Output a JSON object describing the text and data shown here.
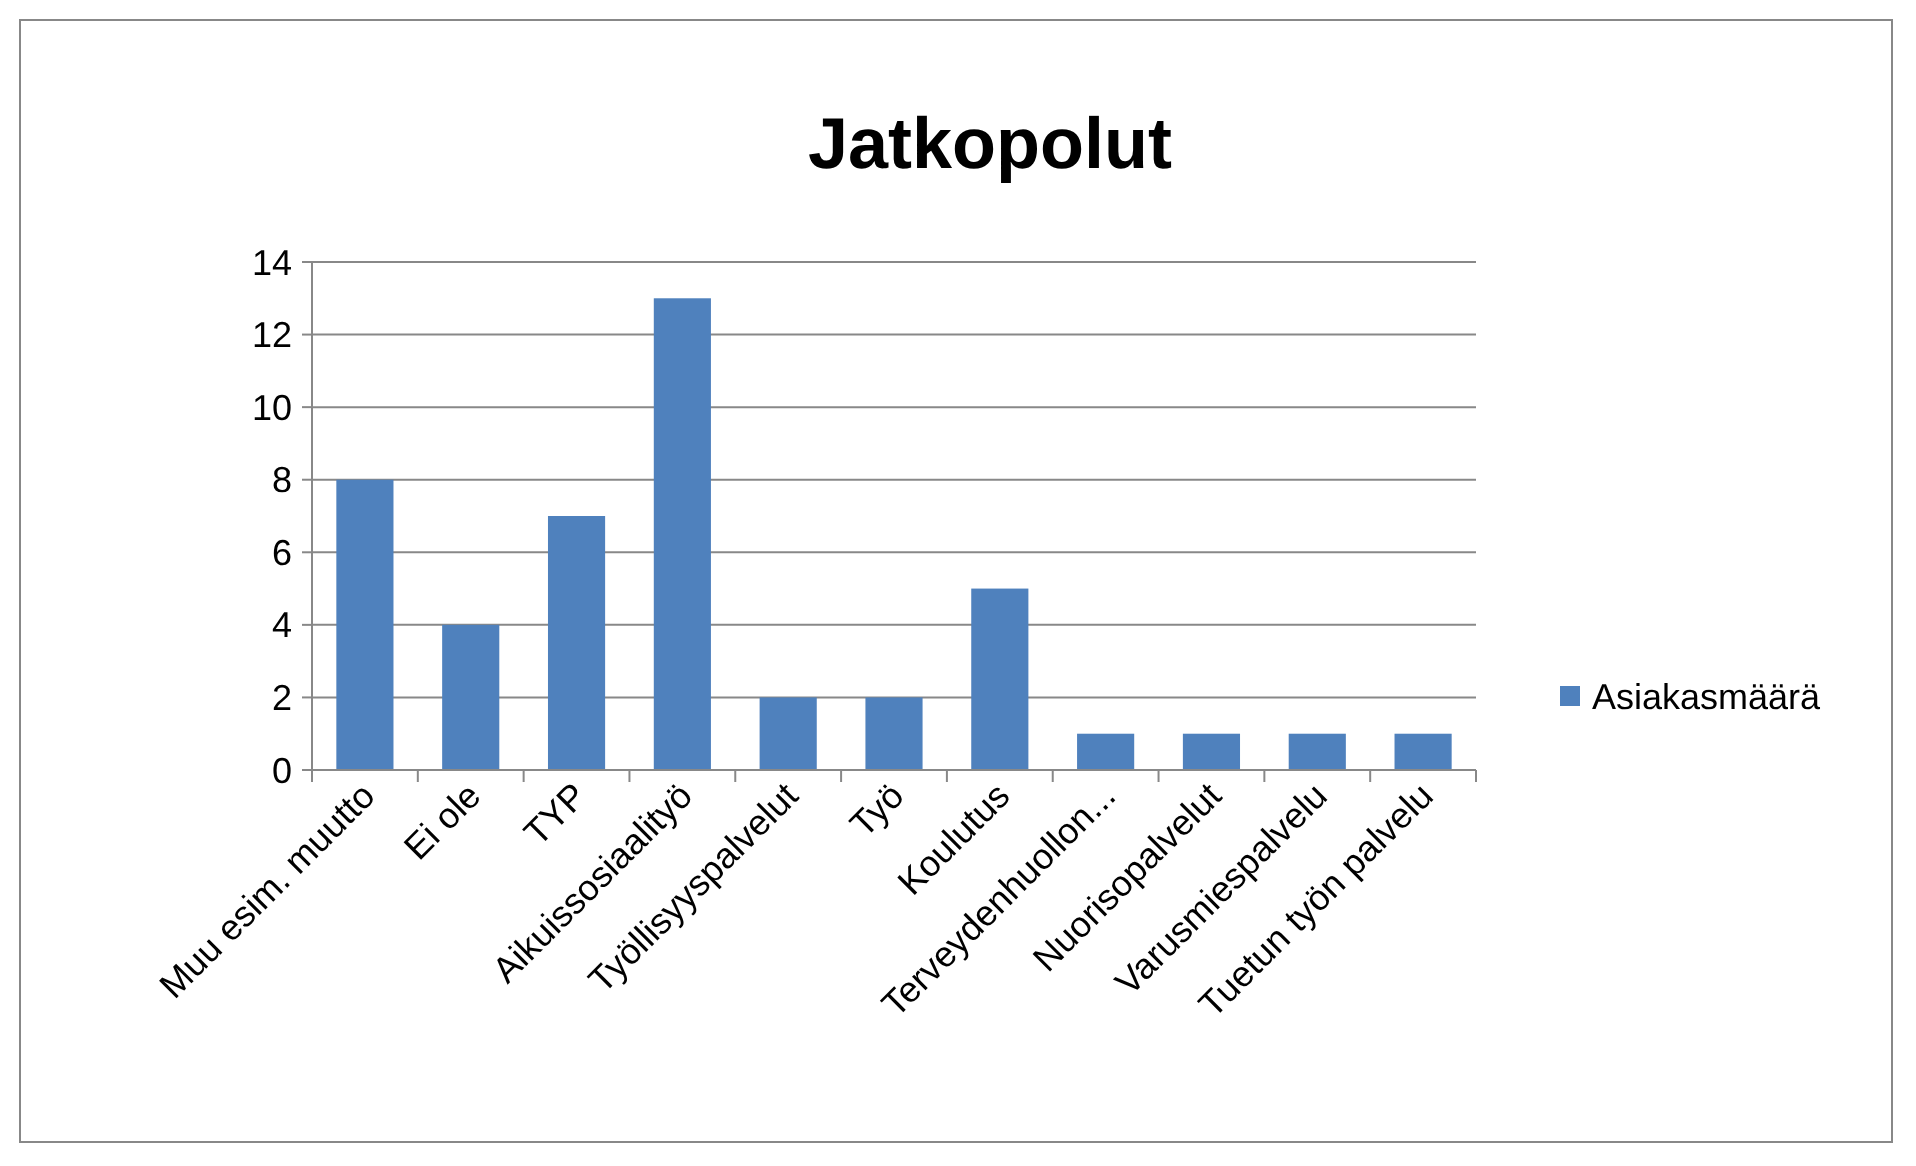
{
  "chart_data": {
    "type": "bar",
    "title": "Jatkopolut",
    "categories": [
      "Muu esim. muutto",
      "Ei ole",
      "TYP",
      "Aikuissosiaalityö",
      "Työllisyyspalvelut",
      "Työ",
      "Koulutus",
      "Terveydenhuollon...",
      "Nuorisopalvelut",
      "Varusmiespalvelu",
      "Tuetun työn palvelu"
    ],
    "series": [
      {
        "name": "Asiakasmäärä",
        "color": "#4f81bd",
        "values": [
          8,
          4,
          7,
          13,
          2,
          2,
          5,
          1,
          1,
          1,
          1
        ]
      }
    ],
    "ylim": [
      0,
      14
    ],
    "yticks": [
      0,
      2,
      4,
      6,
      8,
      10,
      12,
      14
    ],
    "grid": "y",
    "legend": "right"
  }
}
